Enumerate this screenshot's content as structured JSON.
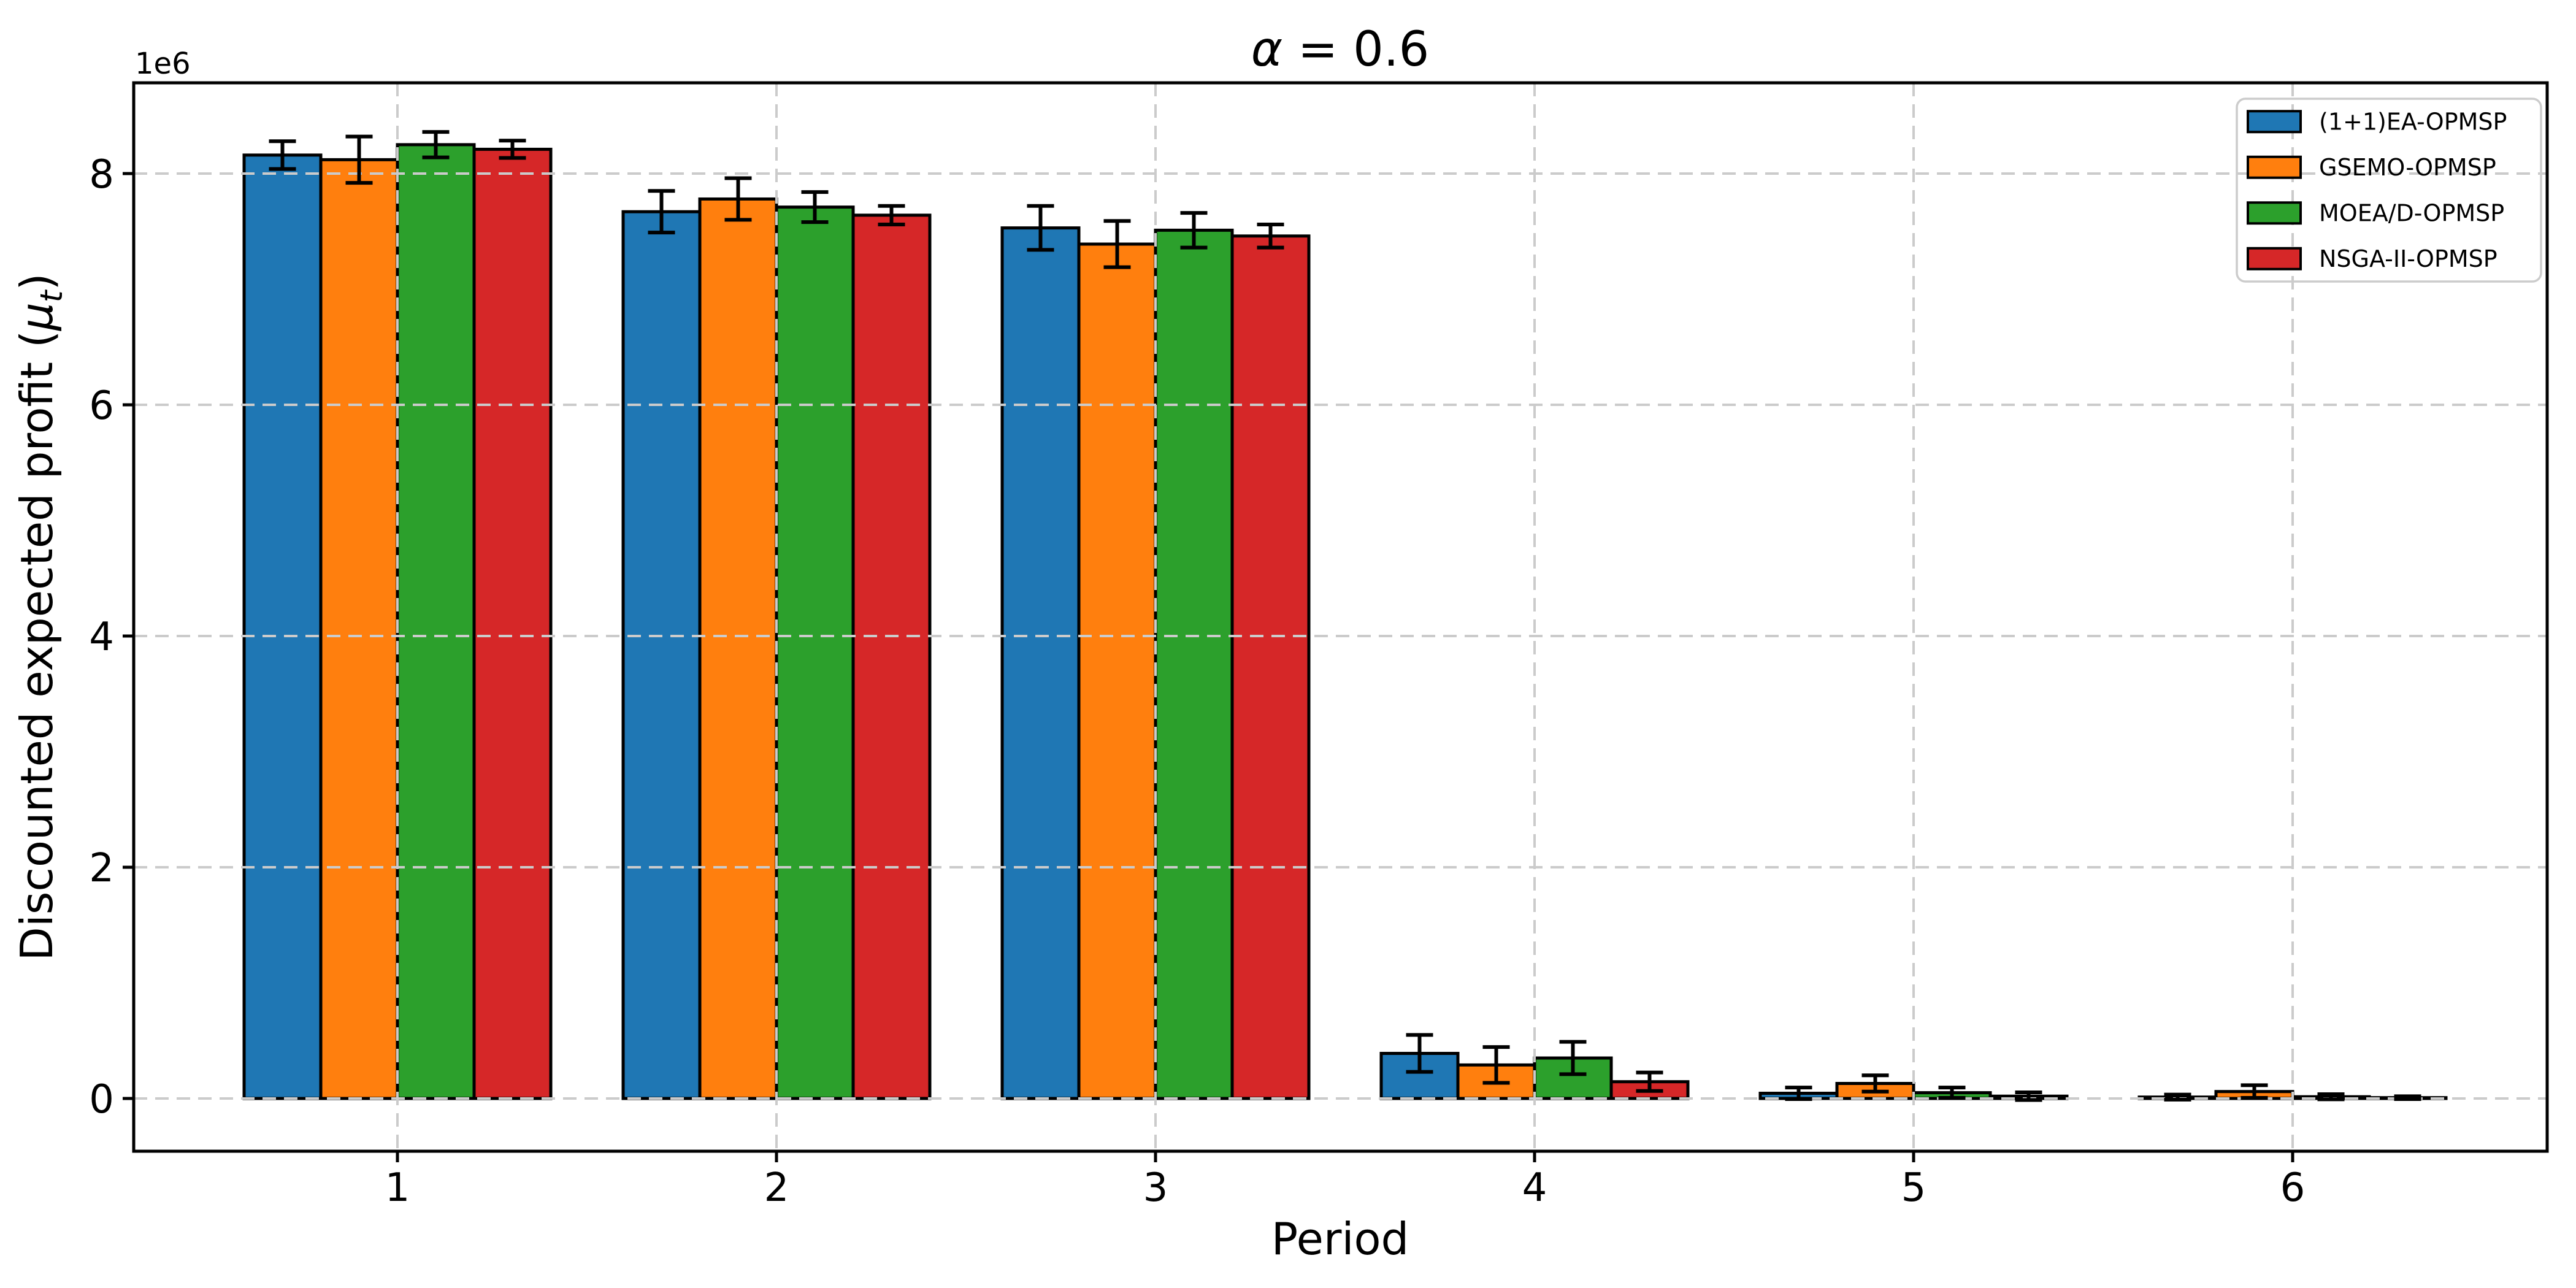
{
  "chart_data": {
    "type": "bar",
    "title": {
      "var": "α",
      "rest": " = 0.6"
    },
    "xlabel": "Period",
    "ylabel": {
      "prefix": "Discounted expected profit (",
      "mu": "μ",
      "sub": "t",
      "suffix": ")"
    },
    "y_offset_label": "1e6",
    "unit_multiplier": 1000000,
    "categories": [
      "1",
      "2",
      "3",
      "4",
      "5",
      "6"
    ],
    "ytick_labels": [
      "0",
      "2",
      "4",
      "6",
      "8"
    ],
    "yticks": [
      0,
      2,
      4,
      6,
      8
    ],
    "ylim": [
      -0.46,
      8.79
    ],
    "grid": "dashed",
    "legend_position": "upper right",
    "series": [
      {
        "name": "(1+1)EA-OPMSP",
        "color": "#1f77b4",
        "values": [
          8.16,
          7.67,
          7.53,
          0.39,
          0.045,
          0.012
        ],
        "errors": [
          0.12,
          0.18,
          0.19,
          0.16,
          0.05,
          0.022
        ]
      },
      {
        "name": "GSEMO-OPMSP",
        "color": "#ff7f0e",
        "values": [
          8.12,
          7.78,
          7.39,
          0.29,
          0.13,
          0.06
        ],
        "errors": [
          0.2,
          0.18,
          0.2,
          0.155,
          0.07,
          0.055
        ]
      },
      {
        "name": "MOEA/D-OPMSP",
        "color": "#2ca02c",
        "values": [
          8.25,
          7.71,
          7.51,
          0.35,
          0.05,
          0.015
        ],
        "errors": [
          0.11,
          0.13,
          0.15,
          0.14,
          0.045,
          0.022
        ]
      },
      {
        "name": "NSGA-II-OPMSP",
        "color": "#d62728",
        "values": [
          8.21,
          7.64,
          7.46,
          0.145,
          0.02,
          0.007
        ],
        "errors": [
          0.075,
          0.08,
          0.1,
          0.08,
          0.033,
          0.012
        ]
      }
    ]
  },
  "colors": {
    "background": "#ffffff",
    "grid": "#cbcbcb",
    "bar_edge": "#000000",
    "error_bar": "#000000",
    "spine": "#000000",
    "legend_border": "#cccccc",
    "text": "#000000"
  }
}
